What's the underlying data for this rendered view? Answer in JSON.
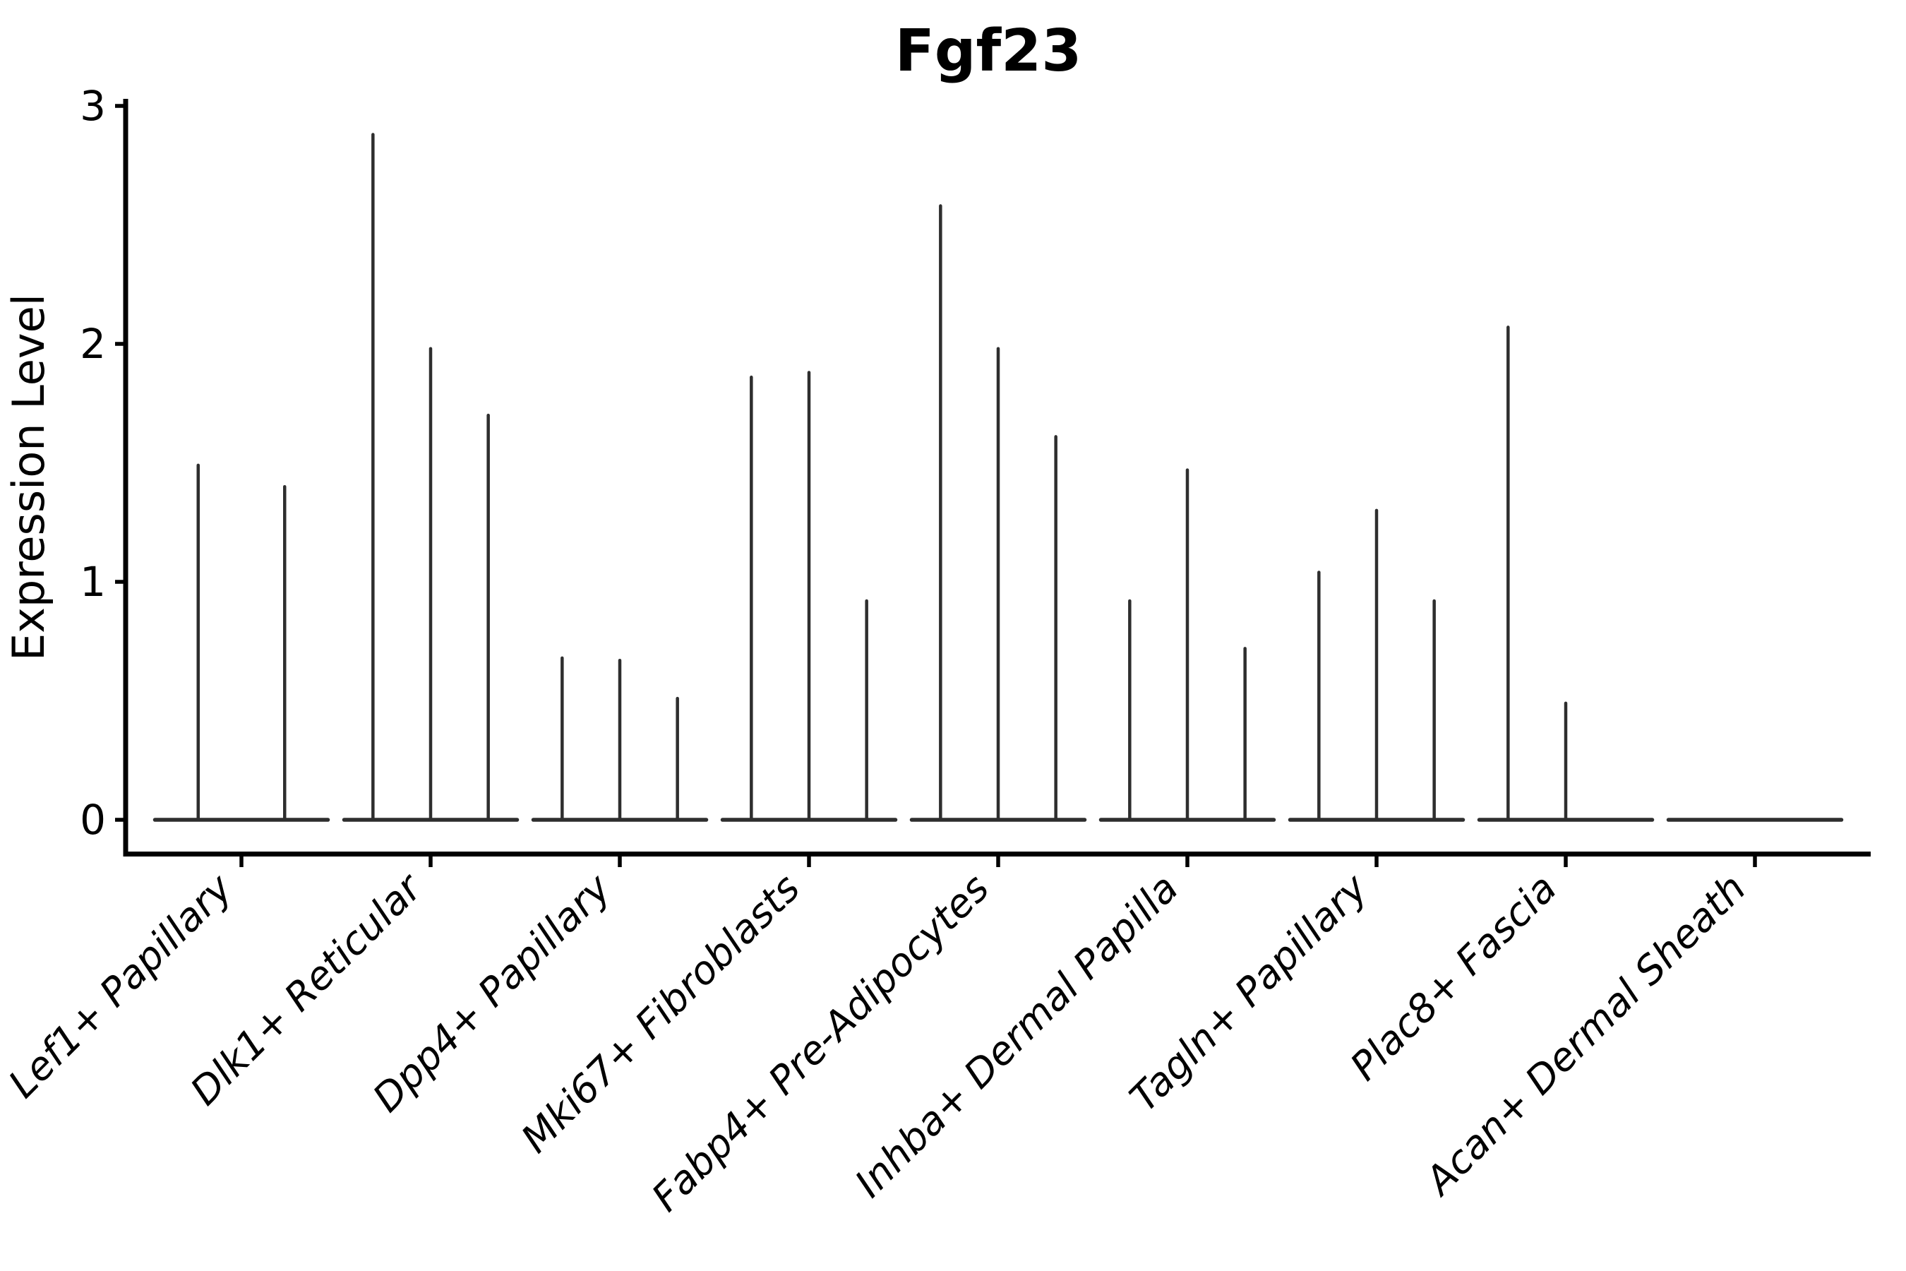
{
  "chart_data": {
    "type": "violin",
    "title": "Fgf23",
    "xlabel": "",
    "ylabel": "Expression Level",
    "ylim": [
      0,
      3
    ],
    "yticks": [
      "0",
      "1",
      "2",
      "3"
    ],
    "ytick_values": [
      0,
      1,
      2,
      3
    ],
    "grid": false,
    "legend": "none",
    "description": "Stacked-violin style gene expression plot; each cell-type group shows thin collapsed violins (most cells at 0) with narrow spikes up to the max expression value.",
    "categories": [
      "Lef1+ Papillary",
      "Dlk1+ Reticular",
      "Dpp4+ Papillary",
      "Mki67+ Fibroblasts",
      "Fabp4+ Pre-Adipocytes",
      "Inhba+ Dermal Papilla",
      "Tagln+ Papillary",
      "Plac8+ Fascia",
      "Acan+ Dermal Sheath"
    ],
    "groups": [
      {
        "label": "Lef1+ Papillary",
        "spike_maxima": [
          1.49,
          1.4
        ]
      },
      {
        "label": "Dlk1+ Reticular",
        "spike_maxima": [
          2.88,
          1.98,
          1.7
        ]
      },
      {
        "label": "Dpp4+ Papillary",
        "spike_maxima": [
          0.68,
          0.67,
          0.51
        ]
      },
      {
        "label": "Mki67+ Fibroblasts",
        "spike_maxima": [
          1.86,
          1.88,
          0.92
        ]
      },
      {
        "label": "Fabp4+ Pre-Adipocytes",
        "spike_maxima": [
          2.58,
          1.98,
          1.61
        ]
      },
      {
        "label": "Inhba+ Dermal Papilla",
        "spike_maxima": [
          0.92,
          1.47,
          0.72
        ]
      },
      {
        "label": "Tagln+ Papillary",
        "spike_maxima": [
          1.04,
          1.3,
          0.92
        ]
      },
      {
        "label": "Plac8+ Fascia",
        "spike_maxima": [
          2.07,
          0.49,
          0
        ]
      },
      {
        "label": "Acan+ Dermal Sheath",
        "spike_maxima": [
          0,
          0,
          0
        ]
      }
    ]
  },
  "style": {
    "violin_color": "#2e2e2e",
    "axis_color": "#000000",
    "text_color": "#000000",
    "background": "#ffffff"
  }
}
